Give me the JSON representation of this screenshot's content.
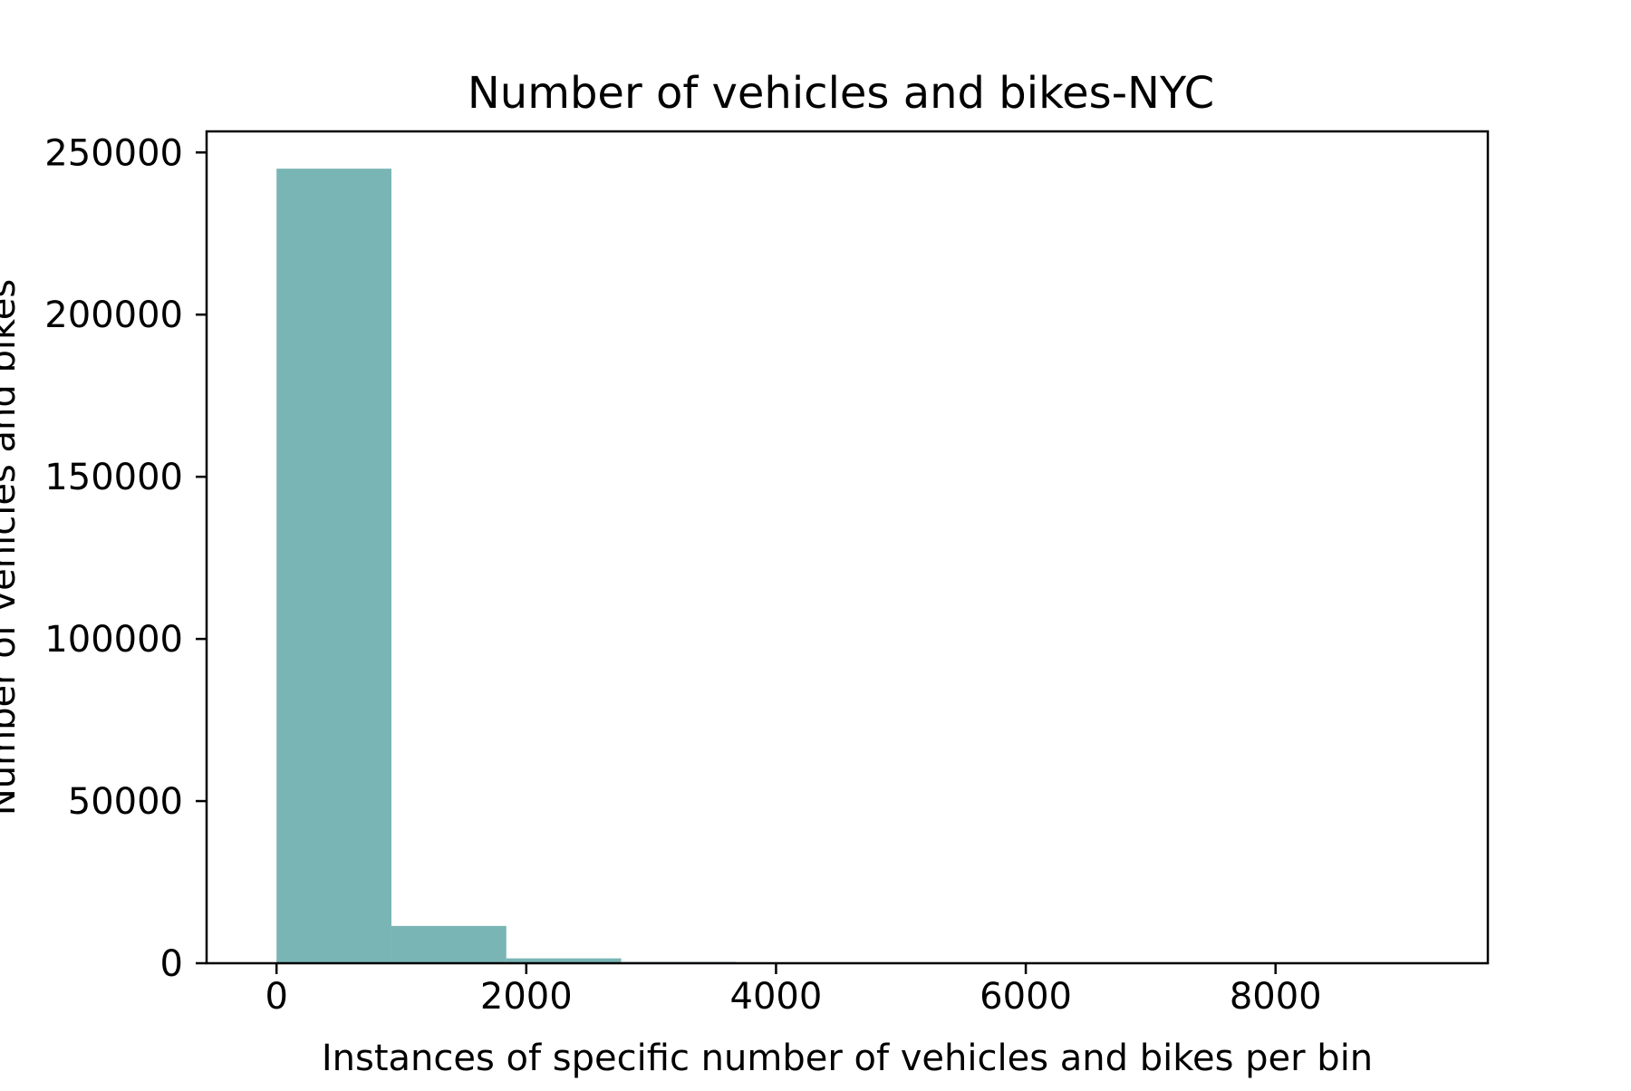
{
  "chart_data": {
    "type": "bar",
    "title": "Number of vehicles and bikes-NYC",
    "xlabel": "Instances of specific number of vehicles and bikes per bin",
    "ylabel": "Number of vehicles and bikes",
    "xlim": [
      -560,
      9700
    ],
    "ylim": [
      0,
      256500
    ],
    "x_ticks": [
      0,
      2000,
      4000,
      6000,
      8000
    ],
    "y_ticks": [
      0,
      50000,
      100000,
      150000,
      200000,
      250000
    ],
    "bins": [
      {
        "start": 0,
        "end": 920,
        "value": 245000
      },
      {
        "start": 920,
        "end": 1840,
        "value": 11500
      },
      {
        "start": 1840,
        "end": 2760,
        "value": 1500
      },
      {
        "start": 2760,
        "end": 3680,
        "value": 400
      },
      {
        "start": 3680,
        "end": 4600,
        "value": 250
      },
      {
        "start": 4600,
        "end": 5520,
        "value": 0
      },
      {
        "start": 5520,
        "end": 6440,
        "value": 0
      },
      {
        "start": 6440,
        "end": 7360,
        "value": 0
      },
      {
        "start": 7360,
        "end": 8280,
        "value": 0
      },
      {
        "start": 8280,
        "end": 9200,
        "value": 0
      }
    ],
    "bar_color": "#7ab5b5",
    "grid": false,
    "legend": "none"
  }
}
